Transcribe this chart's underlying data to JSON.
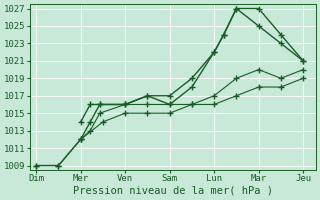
{
  "xlabel": "Pression niveau de la mer( hPa )",
  "bg_color": "#c8e8d8",
  "grid_color": "#b0d8c0",
  "line_color": "#1a5c28",
  "ylim": [
    1008.5,
    1027.5
  ],
  "yticks": [
    1009,
    1011,
    1013,
    1015,
    1017,
    1019,
    1021,
    1023,
    1025,
    1027
  ],
  "xtick_labels": [
    "Dim",
    "Mer",
    "Ven",
    "Sam",
    "Lun",
    "Mar",
    "Jeu"
  ],
  "xtick_positions": [
    0,
    14,
    28,
    42,
    56,
    70,
    84
  ],
  "xlim": [
    -2,
    88
  ],
  "lines": [
    {
      "x": [
        0,
        7,
        14,
        17,
        20,
        28,
        35,
        42,
        49,
        56,
        59,
        63,
        70,
        77,
        84
      ],
      "y": [
        1009,
        1009,
        1012,
        1014,
        1016,
        1016,
        1017,
        1017,
        1019,
        1022,
        1024,
        1027,
        1027,
        1024,
        1021
      ],
      "style": "-",
      "marker": "+",
      "markersize": 4,
      "linewidth": 1.0,
      "zorder": 3
    },
    {
      "x": [
        14,
        17,
        20,
        28,
        35,
        42,
        49,
        56,
        59,
        63,
        70,
        77,
        84
      ],
      "y": [
        1014,
        1016,
        1016,
        1016,
        1017,
        1016,
        1018,
        1022,
        1024,
        1027,
        1025,
        1023,
        1021
      ],
      "style": "-",
      "marker": "+",
      "markersize": 4,
      "linewidth": 1.0,
      "zorder": 3
    },
    {
      "x": [
        0,
        7,
        14,
        17,
        20,
        28,
        35,
        42,
        49,
        56,
        63,
        70,
        77,
        84
      ],
      "y": [
        1009,
        1009,
        1012,
        1013,
        1015,
        1016,
        1016,
        1016,
        1016,
        1017,
        1019,
        1020,
        1019,
        1020
      ],
      "style": "-",
      "marker": "+",
      "markersize": 4,
      "linewidth": 0.8,
      "zorder": 2
    },
    {
      "x": [
        14,
        21,
        28,
        35,
        42,
        49,
        56,
        63,
        70,
        77,
        84
      ],
      "y": [
        1012,
        1014,
        1015,
        1015,
        1015,
        1016,
        1016,
        1017,
        1018,
        1018,
        1019
      ],
      "style": "-",
      "marker": "+",
      "markersize": 4,
      "linewidth": 0.8,
      "zorder": 2
    }
  ],
  "fig_bg_color": "#c8e8d8",
  "xlabel_fontsize": 7.5,
  "tick_fontsize": 6.5,
  "fig_width": 3.2,
  "fig_height": 2.0,
  "dpi": 100
}
